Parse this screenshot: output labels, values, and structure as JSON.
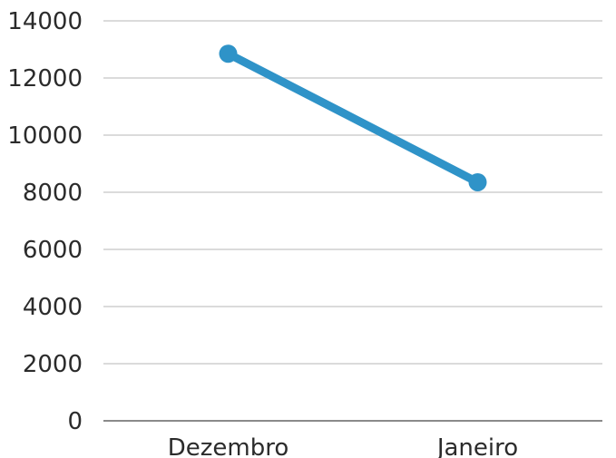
{
  "chart_data": {
    "type": "line",
    "categories": [
      "Dezembro",
      "Janeiro"
    ],
    "series": [
      {
        "values": [
          12850,
          8350
        ],
        "color": "#2f93c8"
      }
    ],
    "y_ticks": [
      "0",
      "2000",
      "4000",
      "6000",
      "8000",
      "10000",
      "12000",
      "14000"
    ],
    "ylim": [
      0,
      14000
    ],
    "grid": true,
    "legend": "none",
    "title": "",
    "xlabel": "",
    "ylabel": ""
  }
}
